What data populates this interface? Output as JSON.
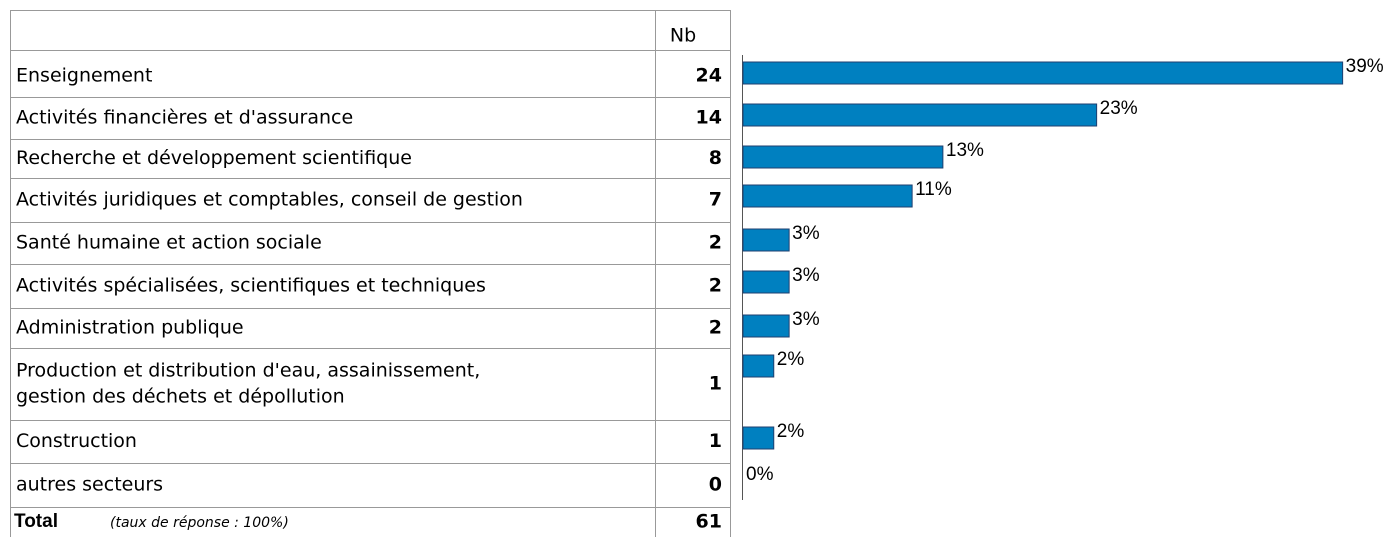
{
  "table": {
    "header": "Nb",
    "rows": [
      {
        "label": [
          "Enseignement"
        ],
        "count": 24
      },
      {
        "label": [
          "Activités financières et d'assurance"
        ],
        "count": 14
      },
      {
        "label": [
          "Recherche et développement scientifique"
        ],
        "count": 8
      },
      {
        "label": [
          "Activités juridiques et comptables, conseil de gestion"
        ],
        "count": 7
      },
      {
        "label": [
          "Santé humaine et action sociale"
        ],
        "count": 2
      },
      {
        "label": [
          "Activités spécialisées, scientifiques et techniques"
        ],
        "count": 2
      },
      {
        "label": [
          "Administration publique"
        ],
        "count": 2
      },
      {
        "label": [
          "Production et distribution d'eau, assainissement,",
          "gestion des déchets et dépollution"
        ],
        "count": 1
      },
      {
        "label": [
          "Construction"
        ],
        "count": 1
      },
      {
        "label": [
          "autres secteurs"
        ],
        "count": 0
      }
    ],
    "total": {
      "label": "Total",
      "note": "(taux de réponse : 100%)",
      "count": 61
    }
  },
  "chart_data": {
    "type": "bar",
    "orientation": "horizontal",
    "values": [
      39,
      23,
      13,
      11,
      3,
      3,
      3,
      2,
      2,
      0
    ],
    "value_labels": [
      "39%",
      "23%",
      "13%",
      "11%",
      "3%",
      "3%",
      "3%",
      "2%",
      "2%",
      "0%"
    ],
    "color": "#0080c0",
    "xlim": [
      0,
      40
    ]
  }
}
